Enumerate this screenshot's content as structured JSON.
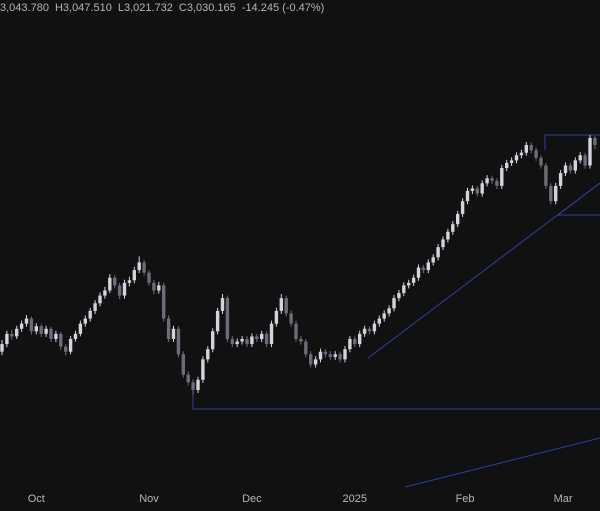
{
  "chart_data": {
    "type": "candlestick",
    "header": {
      "open": "3,043.780",
      "high_label": "H",
      "high": "3,047.510",
      "low_label": "L",
      "low": "3,021.732",
      "close_label": "C",
      "close": "3,030.165",
      "change": "-14.245 (-0.47%)"
    },
    "up_color": "#d1d4dc",
    "down_color": "#6a6d78",
    "ylim": [
      2354,
      3279
    ],
    "xticks": [
      {
        "value": 7,
        "label": "Oct"
      },
      {
        "value": 30,
        "label": "Nov"
      },
      {
        "value": 51,
        "label": "Dec"
      },
      {
        "value": 72,
        "label": "2025"
      },
      {
        "value": 94.5,
        "label": "Feb"
      },
      {
        "value": 114.5,
        "label": "Mar"
      }
    ],
    "ohlc": [
      [
        2625,
        2648,
        2618,
        2640
      ],
      [
        2640,
        2666,
        2634,
        2660
      ],
      [
        2660,
        2668,
        2648,
        2655
      ],
      [
        2655,
        2676,
        2650,
        2670
      ],
      [
        2670,
        2686,
        2664,
        2680
      ],
      [
        2680,
        2697,
        2674,
        2690
      ],
      [
        2690,
        2694,
        2658,
        2665
      ],
      [
        2665,
        2681,
        2659,
        2675
      ],
      [
        2675,
        2679,
        2654,
        2660
      ],
      [
        2660,
        2676,
        2654,
        2670
      ],
      [
        2670,
        2674,
        2644,
        2650
      ],
      [
        2650,
        2666,
        2644,
        2660
      ],
      [
        2660,
        2664,
        2628,
        2635
      ],
      [
        2635,
        2640,
        2618,
        2625
      ],
      [
        2625,
        2656,
        2620,
        2650
      ],
      [
        2650,
        2666,
        2645,
        2660
      ],
      [
        2660,
        2686,
        2655,
        2680
      ],
      [
        2680,
        2696,
        2674,
        2690
      ],
      [
        2690,
        2711,
        2684,
        2705
      ],
      [
        2705,
        2726,
        2699,
        2720
      ],
      [
        2720,
        2741,
        2714,
        2735
      ],
      [
        2735,
        2752,
        2729,
        2745
      ],
      [
        2745,
        2777,
        2740,
        2770
      ],
      [
        2770,
        2775,
        2749,
        2755
      ],
      [
        2755,
        2760,
        2728,
        2735
      ],
      [
        2735,
        2766,
        2729,
        2760
      ],
      [
        2760,
        2772,
        2753,
        2765
      ],
      [
        2765,
        2791,
        2759,
        2785
      ],
      [
        2785,
        2812,
        2779,
        2800
      ],
      [
        2800,
        2805,
        2774,
        2780
      ],
      [
        2780,
        2785,
        2754,
        2760
      ],
      [
        2760,
        2766,
        2738,
        2745
      ],
      [
        2745,
        2762,
        2739,
        2755
      ],
      [
        2755,
        2760,
        2684,
        2690
      ],
      [
        2690,
        2696,
        2644,
        2650
      ],
      [
        2650,
        2676,
        2644,
        2670
      ],
      [
        2670,
        2675,
        2614,
        2620
      ],
      [
        2620,
        2626,
        2574,
        2580
      ],
      [
        2580,
        2586,
        2559,
        2565
      ],
      [
        2565,
        2571,
        2540,
        2550
      ],
      [
        2550,
        2576,
        2544,
        2570
      ],
      [
        2570,
        2616,
        2564,
        2610
      ],
      [
        2610,
        2636,
        2604,
        2630
      ],
      [
        2630,
        2671,
        2624,
        2665
      ],
      [
        2665,
        2711,
        2659,
        2705
      ],
      [
        2705,
        2738,
        2699,
        2730
      ],
      [
        2730,
        2735,
        2644,
        2650
      ],
      [
        2650,
        2656,
        2634,
        2640
      ],
      [
        2640,
        2651,
        2634,
        2645
      ],
      [
        2645,
        2656,
        2639,
        2650
      ],
      [
        2650,
        2656,
        2634,
        2640
      ],
      [
        2640,
        2661,
        2634,
        2655
      ],
      [
        2655,
        2660,
        2644,
        2650
      ],
      [
        2650,
        2666,
        2644,
        2660
      ],
      [
        2660,
        2665,
        2634,
        2640
      ],
      [
        2640,
        2686,
        2634,
        2680
      ],
      [
        2680,
        2711,
        2674,
        2705
      ],
      [
        2705,
        2738,
        2699,
        2730
      ],
      [
        2730,
        2735,
        2694,
        2700
      ],
      [
        2700,
        2706,
        2674,
        2680
      ],
      [
        2680,
        2686,
        2644,
        2650
      ],
      [
        2650,
        2656,
        2639,
        2645
      ],
      [
        2645,
        2650,
        2614,
        2620
      ],
      [
        2620,
        2626,
        2594,
        2600
      ],
      [
        2600,
        2616,
        2594,
        2610
      ],
      [
        2610,
        2631,
        2604,
        2625
      ],
      [
        2625,
        2630,
        2614,
        2620
      ],
      [
        2620,
        2626,
        2609,
        2615
      ],
      [
        2615,
        2626,
        2609,
        2620
      ],
      [
        2620,
        2625,
        2604,
        2610
      ],
      [
        2610,
        2636,
        2604,
        2630
      ],
      [
        2630,
        2656,
        2624,
        2650
      ],
      [
        2650,
        2655,
        2634,
        2640
      ],
      [
        2640,
        2666,
        2634,
        2660
      ],
      [
        2660,
        2676,
        2654,
        2670
      ],
      [
        2670,
        2675,
        2659,
        2665
      ],
      [
        2665,
        2686,
        2659,
        2680
      ],
      [
        2680,
        2696,
        2674,
        2690
      ],
      [
        2690,
        2706,
        2684,
        2700
      ],
      [
        2700,
        2716,
        2694,
        2710
      ],
      [
        2710,
        2736,
        2704,
        2730
      ],
      [
        2730,
        2746,
        2724,
        2740
      ],
      [
        2740,
        2761,
        2734,
        2755
      ],
      [
        2755,
        2766,
        2749,
        2760
      ],
      [
        2760,
        2776,
        2754,
        2770
      ],
      [
        2770,
        2796,
        2764,
        2790
      ],
      [
        2790,
        2795,
        2779,
        2785
      ],
      [
        2785,
        2806,
        2779,
        2800
      ],
      [
        2800,
        2816,
        2794,
        2810
      ],
      [
        2810,
        2836,
        2804,
        2830
      ],
      [
        2830,
        2851,
        2824,
        2845
      ],
      [
        2845,
        2866,
        2839,
        2860
      ],
      [
        2860,
        2881,
        2854,
        2875
      ],
      [
        2875,
        2901,
        2869,
        2895
      ],
      [
        2895,
        2926,
        2889,
        2920
      ],
      [
        2920,
        2946,
        2914,
        2940
      ],
      [
        2940,
        2951,
        2934,
        2945
      ],
      [
        2945,
        2950,
        2929,
        2935
      ],
      [
        2935,
        2961,
        2929,
        2955
      ],
      [
        2955,
        2971,
        2949,
        2965
      ],
      [
        2965,
        2970,
        2954,
        2960
      ],
      [
        2960,
        2965,
        2944,
        2950
      ],
      [
        2950,
        2991,
        2944,
        2985
      ],
      [
        2985,
        3001,
        2979,
        2995
      ],
      [
        2995,
        3006,
        2989,
        3000
      ],
      [
        3000,
        3016,
        2994,
        3010
      ],
      [
        3010,
        3021,
        3004,
        3015
      ],
      [
        3015,
        3036,
        3009,
        3030
      ],
      [
        3030,
        3035,
        3014,
        3020
      ],
      [
        3020,
        3025,
        2999,
        3005
      ],
      [
        3005,
        3010,
        2984,
        2990
      ],
      [
        2990,
        2995,
        2944,
        2950
      ],
      [
        2950,
        2955,
        2914,
        2920
      ],
      [
        2920,
        2956,
        2914,
        2950
      ],
      [
        2950,
        2981,
        2944,
        2975
      ],
      [
        2975,
        2996,
        2969,
        2990
      ],
      [
        2990,
        2995,
        2974,
        2980
      ],
      [
        2980,
        3006,
        2974,
        3000
      ],
      [
        3000,
        3016,
        2994,
        3010
      ],
      [
        3010,
        3015,
        2984,
        2990
      ],
      [
        2990,
        3050,
        2984,
        3044
      ],
      [
        3043.78,
        3047.51,
        3021.732,
        3030.165
      ]
    ]
  }
}
